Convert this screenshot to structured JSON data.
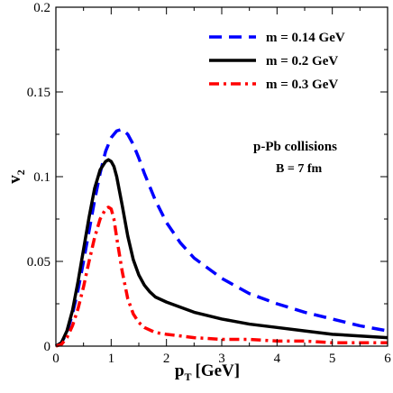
{
  "chart_data": {
    "type": "line",
    "xlabel_main": "p",
    "xlabel_sub": "T",
    "xlabel_unit": "[GeV]",
    "ylabel_main": "v",
    "ylabel_sub": "2",
    "xlim": [
      0,
      6
    ],
    "ylim": [
      0,
      0.2
    ],
    "xticks": [
      "0",
      "1",
      "2",
      "3",
      "4",
      "5",
      "6"
    ],
    "yticks": [
      "0",
      "0.05",
      "0.1",
      "0.15",
      "0.2"
    ],
    "legend_position": "top-right",
    "grid": false,
    "annotations": [
      "p-Pb collisions",
      "B = 7  fm"
    ],
    "series": [
      {
        "name": "m = 0.14 GeV",
        "color": "#0000ff",
        "dash": "dashed",
        "x": [
          0,
          0.1,
          0.2,
          0.3,
          0.4,
          0.5,
          0.6,
          0.7,
          0.8,
          0.9,
          1.0,
          1.1,
          1.2,
          1.3,
          1.4,
          1.5,
          1.6,
          1.8,
          2.0,
          2.25,
          2.5,
          3.0,
          3.5,
          4.0,
          4.5,
          5.0,
          5.5,
          6.0
        ],
        "values": [
          0,
          0.002,
          0.008,
          0.019,
          0.033,
          0.05,
          0.068,
          0.086,
          0.102,
          0.115,
          0.123,
          0.127,
          0.128,
          0.125,
          0.119,
          0.111,
          0.102,
          0.086,
          0.073,
          0.061,
          0.052,
          0.04,
          0.031,
          0.025,
          0.02,
          0.016,
          0.012,
          0.009
        ]
      },
      {
        "name": "m = 0.2 GeV",
        "color": "#000000",
        "dash": "solid",
        "x": [
          0,
          0.1,
          0.2,
          0.3,
          0.4,
          0.5,
          0.6,
          0.7,
          0.8,
          0.9,
          0.95,
          1.0,
          1.05,
          1.1,
          1.2,
          1.3,
          1.4,
          1.5,
          1.6,
          1.7,
          1.8,
          2.0,
          2.5,
          3.0,
          3.5,
          4.0,
          4.5,
          5.0,
          5.5,
          6.0
        ],
        "values": [
          0,
          0.002,
          0.009,
          0.021,
          0.038,
          0.057,
          0.076,
          0.093,
          0.104,
          0.109,
          0.11,
          0.109,
          0.106,
          0.1,
          0.083,
          0.065,
          0.051,
          0.042,
          0.036,
          0.032,
          0.029,
          0.026,
          0.02,
          0.016,
          0.013,
          0.011,
          0.009,
          0.007,
          0.006,
          0.005
        ]
      },
      {
        "name": "m = 0.3 GeV",
        "color": "#ff0000",
        "dash": "dashdot",
        "x": [
          0,
          0.1,
          0.2,
          0.3,
          0.4,
          0.5,
          0.6,
          0.7,
          0.8,
          0.9,
          0.95,
          1.0,
          1.05,
          1.1,
          1.2,
          1.3,
          1.4,
          1.5,
          1.6,
          1.8,
          2.0,
          2.5,
          3.0,
          3.5,
          4.0,
          4.5,
          5.0,
          5.5,
          6.0
        ],
        "values": [
          0,
          0.001,
          0.005,
          0.012,
          0.022,
          0.035,
          0.05,
          0.064,
          0.075,
          0.081,
          0.082,
          0.081,
          0.075,
          0.064,
          0.044,
          0.028,
          0.019,
          0.014,
          0.011,
          0.008,
          0.007,
          0.005,
          0.004,
          0.004,
          0.003,
          0.003,
          0.002,
          0.002,
          0.002
        ]
      }
    ]
  }
}
